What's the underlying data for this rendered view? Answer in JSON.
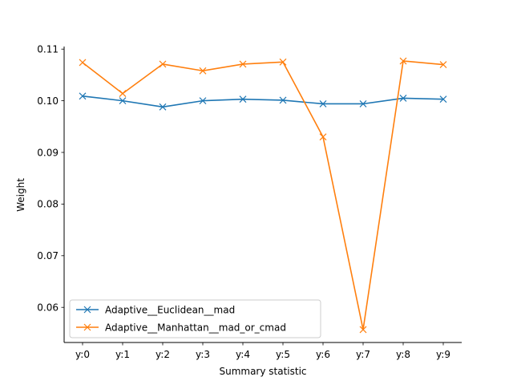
{
  "chart_data": {
    "type": "line",
    "title": "",
    "xlabel": "Summary statistic",
    "ylabel": "Weight",
    "categories": [
      "y:0",
      "y:1",
      "y:2",
      "y:3",
      "y:4",
      "y:5",
      "y:6",
      "y:7",
      "y:8",
      "y:9"
    ],
    "ylim": [
      0.0532,
      0.1105
    ],
    "yticks": [
      0.06,
      0.07,
      0.08,
      0.09,
      0.1,
      0.11
    ],
    "ytick_labels": [
      "0.06",
      "0.07",
      "0.08",
      "0.09",
      "0.10",
      "0.11"
    ],
    "grid": false,
    "legend_position": "lower-left",
    "marker": "x",
    "series": [
      {
        "name": "Adaptive__Euclidean__mad",
        "color": "#1f77b4",
        "values": [
          0.1009,
          0.1,
          0.0988,
          0.1,
          0.1003,
          0.1001,
          0.0994,
          0.0994,
          0.1005,
          0.1003
        ]
      },
      {
        "name": "Adaptive__Manhattan__mad_or_cmad",
        "color": "#ff7f0e",
        "values": [
          0.1074,
          0.1014,
          0.1071,
          0.1058,
          0.1071,
          0.1075,
          0.093,
          0.0557,
          0.1077,
          0.107
        ]
      }
    ]
  }
}
